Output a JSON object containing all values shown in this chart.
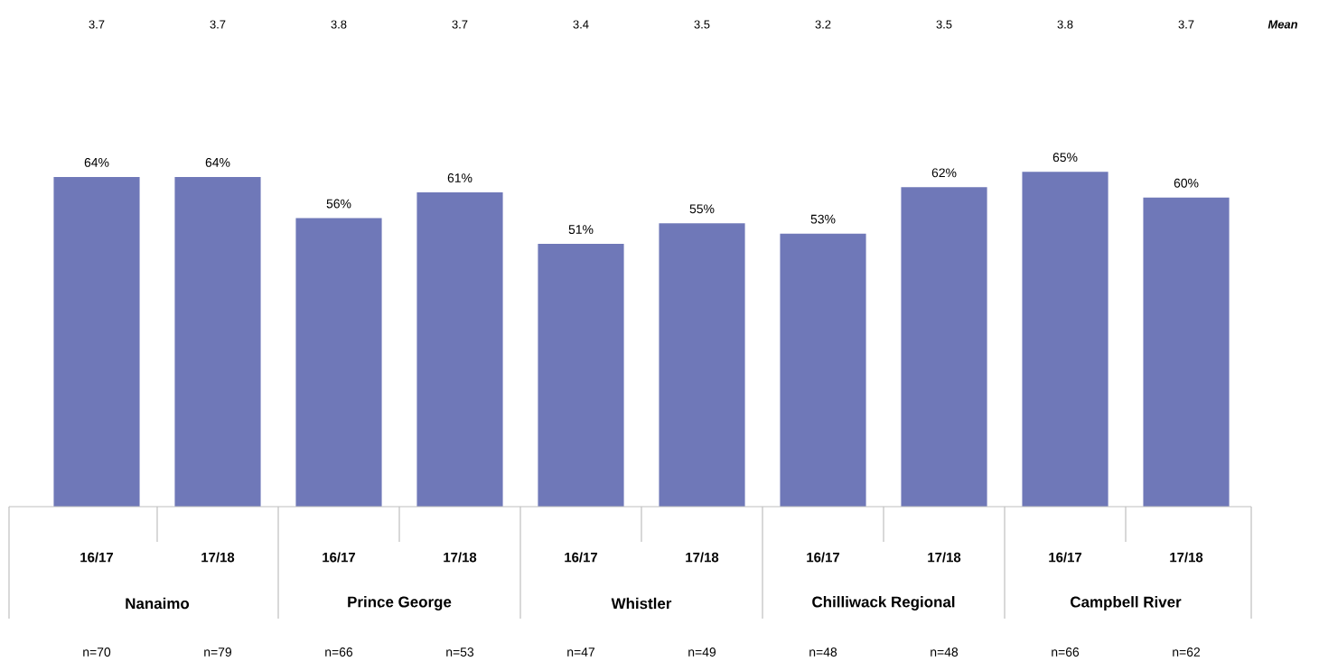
{
  "chart_data": {
    "type": "bar",
    "categories": [
      "16/17",
      "17/18",
      "16/17",
      "17/18",
      "16/17",
      "17/18",
      "16/17",
      "17/18",
      "16/17",
      "17/18"
    ],
    "values": [
      64,
      64,
      56,
      61,
      51,
      55,
      53,
      62,
      65,
      60
    ],
    "value_labels": [
      "64%",
      "64%",
      "56%",
      "61%",
      "51%",
      "55%",
      "53%",
      "62%",
      "65%",
      "60%"
    ],
    "color": "#6f78b8",
    "annotations": [
      "3.7",
      "3.7",
      "3.8",
      "3.7",
      "3.4",
      "3.5",
      "3.2",
      "3.5",
      "3.8",
      "3.7",
      "Mean",
      "Nanaimo",
      "Prince George",
      "Whistler",
      "Chilliwack Regional",
      "Campbell River",
      "n=70",
      "n=79",
      "n=66",
      "n=53",
      "n=47",
      "n=49",
      "n=48",
      "n=48",
      "n=66",
      "n=62"
    ]
  }
}
